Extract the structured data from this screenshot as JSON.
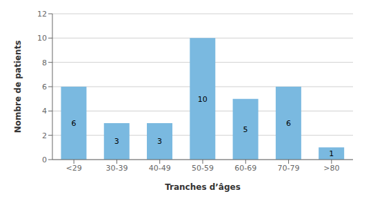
{
  "chart_data": {
    "type": "bar",
    "categories": [
      "<29",
      "30-39",
      "40-49",
      "50-59",
      "60-69",
      "70-79",
      ">80"
    ],
    "values": [
      6,
      3,
      3,
      10,
      5,
      6,
      1
    ],
    "color": "#7ab9e0",
    "xlabel": "Tranches d’âges",
    "ylabel": "Nombre de patients",
    "ylim": [
      0,
      12
    ],
    "yticks": [
      0,
      2,
      4,
      6,
      8,
      10,
      12
    ],
    "grid": true,
    "data_labels": true
  }
}
